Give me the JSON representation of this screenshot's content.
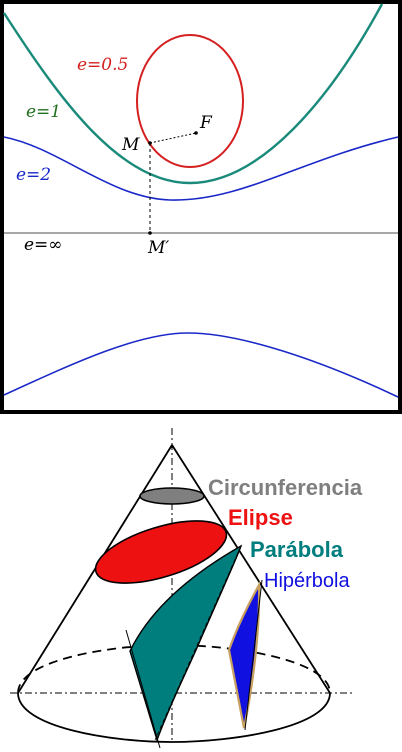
{
  "top_panel": {
    "labels": {
      "e_half": "e=0.5",
      "e_one": "e=1",
      "e_two": "e=2",
      "e_inf": "e=∞",
      "point_M": "M",
      "point_F": "F",
      "point_Mprime": "M′"
    },
    "colors": {
      "ellipse": "#d42020",
      "parabola": "#1a8a7a",
      "hyperbola": "#1a28c8",
      "directrix": "#8c8c8c",
      "frame": "#000000",
      "e_one_label": "#207020"
    }
  },
  "bottom_panel": {
    "labels": {
      "circle": "Circunferencia",
      "ellipse": "Elipse",
      "parabola": "Parábola",
      "hyperbola": "Hipérbola"
    },
    "colors": {
      "circle": "#7f7f7f",
      "ellipse": "#ee1111",
      "parabola": "#007d7d",
      "hyperbola": "#1010e0",
      "hyperbola_outline": "#c8a060"
    }
  }
}
